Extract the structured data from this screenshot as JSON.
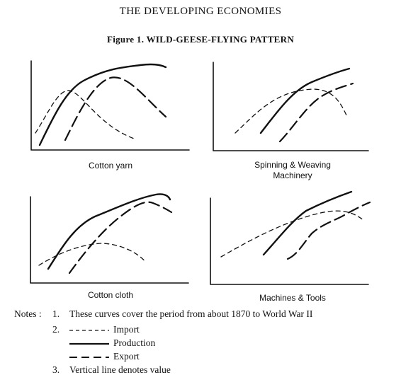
{
  "header": "THE DEVELOPING ECONOMIES",
  "figure_title": "Figure 1.  WILD-GEESE-FLYING PATTERN",
  "panels": [
    {
      "caption": "Cotton yarn"
    },
    {
      "caption": "Spinning & Weaving Machinery"
    },
    {
      "caption": "Cotton cloth"
    },
    {
      "caption": "Machines & Tools"
    }
  ],
  "notes": {
    "label": "Notes :",
    "n1_num": "1.",
    "n1_text": "These curves cover the period from about 1870 to World War II",
    "n2_num": "2.",
    "legend_import": "Import",
    "legend_production": "Production",
    "legend_export": "Export",
    "n3_num": "3.",
    "n3_text": "Vertical line denotes value"
  }
}
